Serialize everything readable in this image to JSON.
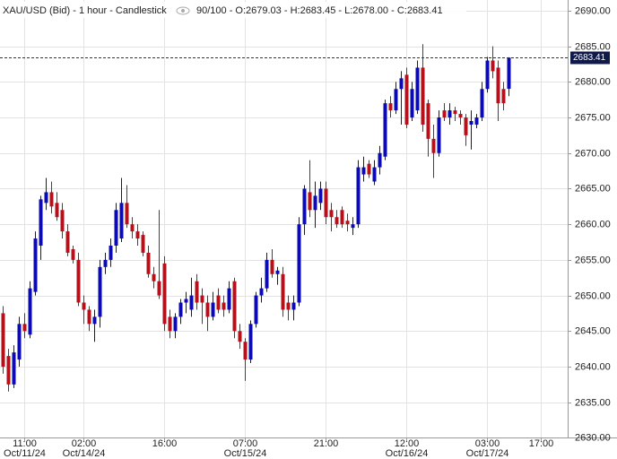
{
  "chart_data": {
    "type": "candlestick",
    "title": "XAU/USD (Bid) - 1 hour - Candlestick",
    "info": "90/100 - O:2679.03 - H:2683.45 - L:2678.00 - C:2683.41",
    "categories": [
      null,
      null,
      null,
      null,
      "11:00",
      null,
      null,
      null,
      null,
      null,
      null,
      null,
      null,
      null,
      null,
      "02:00",
      null,
      null,
      null,
      null,
      null,
      null,
      null,
      null,
      null,
      null,
      null,
      null,
      null,
      null,
      "16:00",
      null,
      null,
      null,
      null,
      null,
      null,
      null,
      null,
      null,
      null,
      null,
      null,
      null,
      null,
      "07:00",
      null,
      null,
      null,
      null,
      null,
      null,
      null,
      null,
      null,
      null,
      null,
      null,
      null,
      null,
      "21:00",
      null,
      null,
      null,
      null,
      null,
      null,
      null,
      null,
      null,
      null,
      null,
      null,
      null,
      null,
      "12:00",
      null,
      null,
      null,
      null,
      null,
      null,
      null,
      null,
      null,
      null,
      null,
      null,
      null,
      null,
      "03:00",
      null,
      null,
      null,
      null,
      null,
      null,
      null,
      null,
      null,
      "17:00"
    ],
    "dates": [
      null,
      null,
      null,
      null,
      "Oct/11/24",
      null,
      null,
      null,
      null,
      null,
      null,
      null,
      null,
      null,
      null,
      "Oct/14/24",
      null,
      null,
      null,
      null,
      null,
      null,
      null,
      null,
      null,
      null,
      null,
      null,
      null,
      null,
      null,
      null,
      null,
      null,
      null,
      null,
      null,
      null,
      null,
      null,
      null,
      null,
      null,
      null,
      null,
      "Oct/15/24",
      null,
      null,
      null,
      null,
      null,
      null,
      null,
      null,
      null,
      null,
      null,
      null,
      null,
      null,
      null,
      null,
      null,
      null,
      null,
      null,
      null,
      null,
      null,
      null,
      null,
      null,
      null,
      null,
      null,
      "Oct/16/24",
      null,
      null,
      null,
      null,
      null,
      null,
      null,
      null,
      null,
      null,
      null,
      null,
      null,
      null,
      "Oct/17/24",
      null,
      null,
      null,
      null,
      null,
      null,
      null,
      null,
      null,
      null
    ],
    "open": [
      2647.5,
      2641.5,
      2637.5,
      2641,
      2646,
      2644.5,
      2650.5,
      2657,
      2663,
      2664.5,
      2663,
      2662,
      2659,
      2656.5,
      2655,
      2649,
      2648,
      2646,
      2647,
      2654,
      2655,
      2657,
      2658,
      2663,
      2660,
      2659,
      2658.5,
      2656,
      2653,
      2652,
      2654.5,
      2647,
      2645,
      2647,
      2649,
      2648,
      2652,
      2650,
      2649,
      2647,
      2650,
      2649,
      2648,
      2652,
      2645,
      2643.5,
      2641,
      2646,
      2650,
      2651,
      2655,
      2653,
      2653,
      2649,
      2648,
      2649,
      2660,
      2664.5,
      2662,
      2663,
      2665,
      2662,
      2661,
      2662,
      2660.5,
      2659.5,
      2660,
      2667,
      2668.5,
      2666,
      2668,
      2669.5,
      2677,
      2676,
      2679,
      2681,
      2675,
      2676,
      2682,
      2677,
      2672,
      2670,
      2676,
      2675,
      2676,
      2675.5,
      2675,
      2674,
      2674,
      2675,
      2679,
      2683,
      2682,
      2679,
      2679.03,
      null,
      null,
      null,
      null,
      null,
      null
    ],
    "high": [
      2648.5,
      2642.5,
      2643,
      2647,
      2647.5,
      2652,
      2659,
      2664,
      2666.5,
      2666,
      2664.5,
      2663,
      2660,
      2657,
      2656,
      2650,
      2648.5,
      2648,
      2655,
      2656,
      2658,
      2663,
      2666.5,
      2665.5,
      2661,
      2660,
      2659,
      2657,
      2654,
      2662,
      2655.5,
      2648,
      2647.5,
      2649.5,
      2650.5,
      2652.5,
      2653,
      2651,
      2650,
      2650.5,
      2651,
      2650,
      2652,
      2652.5,
      2646,
      2644,
      2646.5,
      2650.5,
      2652.5,
      2656,
      2656.5,
      2654,
      2654,
      2650,
      2650,
      2661,
      2665.5,
      2669,
      2666,
      2666,
      2666,
      2663,
      2662,
      2662.5,
      2661.5,
      2661,
      2669,
      2669.5,
      2669,
      2669,
      2671,
      2677.5,
      2678,
      2680,
      2681.5,
      2682,
      2680,
      2683,
      2685.3,
      2677.5,
      2674,
      2676,
      2677,
      2677,
      2676.5,
      2676,
      2675.5,
      2676,
      2675.5,
      2680,
      2683.5,
      2685,
      2683,
      2680,
      2683.45,
      null,
      null,
      null,
      null,
      null,
      null
    ],
    "low": [
      2639,
      2636.5,
      2637,
      2640,
      2644,
      2644,
      2650,
      2655,
      2662,
      2661.5,
      2660.5,
      2658,
      2655.5,
      2654.5,
      2648.5,
      2646,
      2645,
      2643.5,
      2645.5,
      2653,
      2654,
      2656,
      2657.5,
      2659.5,
      2658,
      2657,
      2655.5,
      2652.5,
      2651,
      2649.5,
      2645,
      2644,
      2644,
      2646,
      2647.5,
      2647,
      2648,
      2646,
      2645,
      2646.5,
      2647.5,
      2647,
      2647.5,
      2644,
      2642.5,
      2638,
      2640.5,
      2645.5,
      2649,
      2650.5,
      2652.5,
      2651.5,
      2647,
      2646.5,
      2646.5,
      2648.5,
      2658.5,
      2661,
      2659.5,
      2662,
      2660,
      2659,
      2659.5,
      2659.5,
      2659,
      2658.5,
      2659.5,
      2666,
      2666.5,
      2665.5,
      2667,
      2669,
      2675,
      2675.5,
      2674,
      2673.5,
      2674.5,
      2675.5,
      2673,
      2669.5,
      2666.5,
      2669.5,
      2674.5,
      2674,
      2674.5,
      2674,
      2671,
      2670.5,
      2673.5,
      2674.5,
      2678.5,
      2680.5,
      2674.5,
      2676,
      2678,
      null,
      null,
      null,
      null,
      null,
      null
    ],
    "close": [
      2640,
      2637.5,
      2642,
      2646,
      2645,
      2651,
      2658,
      2663.5,
      2664.5,
      2662.5,
      2661,
      2659,
      2656,
      2655,
      2649,
      2648,
      2646,
      2647,
      2654,
      2655,
      2657,
      2662,
      2663,
      2660,
      2659,
      2658,
      2656,
      2653,
      2652,
      2650,
      2646,
      2645,
      2647,
      2649,
      2649.5,
      2650,
      2649,
      2649,
      2647,
      2649,
      2648,
      2648,
      2651,
      2645,
      2643.5,
      2641,
      2646,
      2650,
      2651,
      2655,
      2653,
      2653.5,
      2648,
      2648,
      2649,
      2660,
      2665,
      2662,
      2664,
      2665,
      2661,
      2661,
      2660,
      2660,
      2660,
      2660,
      2668,
      2668,
      2667,
      2668,
      2670,
      2677,
      2676,
      2679,
      2680.5,
      2674,
      2679,
      2682,
      2674,
      2672,
      2670,
      2675,
      2675,
      2676,
      2675.5,
      2675,
      2672.5,
      2674.5,
      2675,
      2679,
      2683,
      2681.5,
      2677,
      2677,
      2683.41,
      null,
      null,
      null,
      null,
      null,
      null
    ],
    "up_color": "#0b0bb0",
    "down_color": "#b3121d",
    "last_price": 2683.41,
    "ylim": [
      2629.8,
      2691.5
    ],
    "yticks": [
      {
        "value": 2630,
        "label": "2630.00"
      },
      {
        "value": 2635,
        "label": "2635.00"
      },
      {
        "value": 2640,
        "label": "2640.00"
      },
      {
        "value": 2645,
        "label": "2645.00"
      },
      {
        "value": 2650,
        "label": "2650.00"
      },
      {
        "value": 2655,
        "label": "2655.00"
      },
      {
        "value": 2660,
        "label": "2660.00"
      },
      {
        "value": 2665,
        "label": "2665.00"
      },
      {
        "value": 2670,
        "label": "2670.00"
      },
      {
        "value": 2675,
        "label": "2675.00"
      },
      {
        "value": 2680,
        "label": "2680.00"
      },
      {
        "value": 2685,
        "label": "2685.00"
      },
      {
        "value": 2690,
        "label": "2690.00"
      }
    ],
    "grid": true
  }
}
